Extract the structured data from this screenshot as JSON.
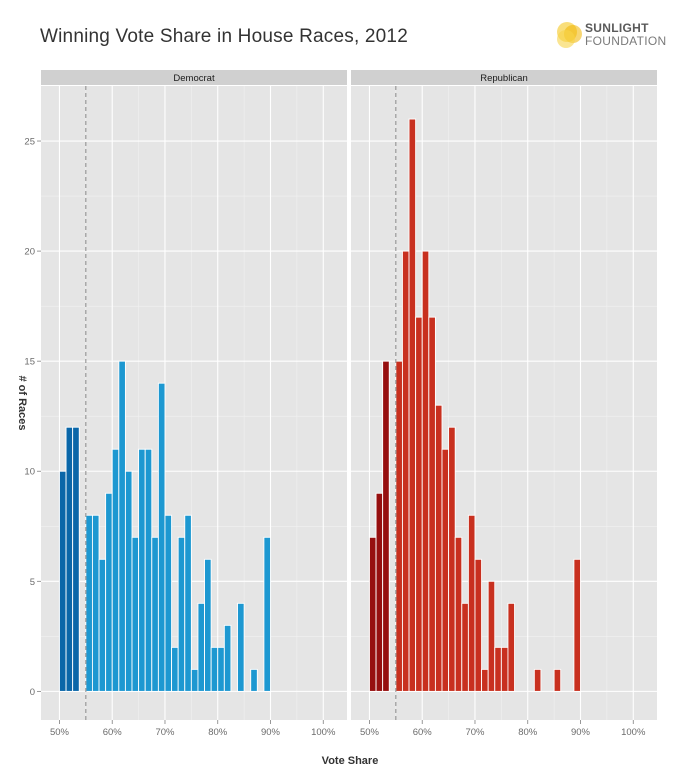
{
  "header": {
    "title": "Winning Vote Share in House Races, 2012",
    "logo_line1": "SUNLIGHT",
    "logo_line2": "FOUNDATION"
  },
  "chart_data": {
    "type": "bar",
    "subtype": "faceted-histogram",
    "title": "Winning Vote Share in House Races, 2012",
    "xlabel": "Vote Share",
    "ylabel": "# of Races",
    "xlim": [
      46.5,
      104.5
    ],
    "ylim": [
      -1.3,
      27.5
    ],
    "x_ticks": [
      50,
      60,
      70,
      80,
      90,
      100
    ],
    "x_tick_labels": [
      "50%",
      "60%",
      "70%",
      "80%",
      "90%",
      "100%"
    ],
    "y_ticks": [
      0,
      5,
      10,
      15,
      20,
      25
    ],
    "y_tick_labels": [
      "0",
      "5",
      "10",
      "15",
      "20",
      "25"
    ],
    "bin_width": 1.25,
    "bin_starts": [
      50,
      51.25,
      52.5,
      53.75,
      55,
      56.25,
      57.5,
      58.75,
      60,
      61.25,
      62.5,
      63.75,
      65,
      66.25,
      67.5,
      68.75,
      70,
      71.25,
      72.5,
      73.75,
      75,
      76.25,
      77.5,
      78.75,
      80,
      81.25,
      82.5,
      83.75,
      85,
      86.25,
      87.5,
      88.75,
      90,
      91.25,
      92.5,
      93.75,
      95,
      96.25,
      97.5,
      98.75,
      100
    ],
    "reference_line_x": 55,
    "grid": true,
    "panels": [
      {
        "name": "Democrat",
        "color_dark": "#0a66a8",
        "color_light": "#1d98d1",
        "values": [
          10,
          12,
          12,
          0,
          8,
          8,
          6,
          9,
          11,
          15,
          10,
          7,
          11,
          11,
          7,
          14,
          8,
          2,
          7,
          8,
          1,
          4,
          6,
          2,
          2,
          3,
          0,
          4,
          0,
          1,
          0,
          7,
          0,
          0,
          0,
          0,
          0,
          0,
          0,
          0,
          0
        ]
      },
      {
        "name": "Republican",
        "color_dark": "#960f0f",
        "color_light": "#c8301f",
        "values": [
          7,
          9,
          15,
          0,
          15,
          20,
          26,
          17,
          20,
          17,
          13,
          11,
          12,
          7,
          4,
          8,
          6,
          1,
          5,
          2,
          2,
          4,
          0,
          0,
          0,
          1,
          0,
          0,
          1,
          0,
          0,
          6,
          0,
          0,
          0,
          0,
          0,
          0,
          0,
          0,
          0
        ]
      }
    ]
  }
}
